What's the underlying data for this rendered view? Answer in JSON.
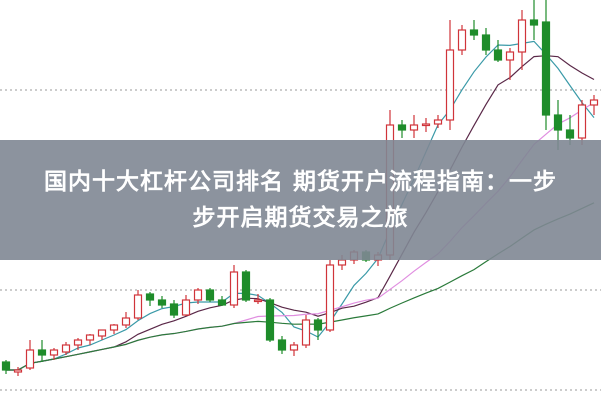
{
  "title": {
    "lines": [
      "国内十大杠杆公司排名 期货开户流程指南：一步",
      "步开启期货交易之旅"
    ]
  },
  "chart_data": {
    "type": "candlestick",
    "title": "",
    "xlabel": "",
    "ylabel": "",
    "grid": "dotted horizontal",
    "up_color": "#d0343a",
    "down_color": "#1e8c2a",
    "ma_colors": [
      "#3a9aa8",
      "#5a2848",
      "#e08ee0",
      "#2a7a3a"
    ],
    "ma_periods": [
      5,
      10,
      20,
      40
    ],
    "ohlc": [
      [
        38,
        40,
        26,
        30
      ],
      [
        28,
        33,
        24,
        30
      ],
      [
        32,
        60,
        30,
        50
      ],
      [
        50,
        60,
        38,
        45
      ],
      [
        45,
        52,
        40,
        50
      ],
      [
        48,
        58,
        45,
        55
      ],
      [
        55,
        62,
        50,
        60
      ],
      [
        60,
        66,
        55,
        65
      ],
      [
        64,
        70,
        60,
        70
      ],
      [
        70,
        76,
        66,
        75
      ],
      [
        75,
        88,
        72,
        82
      ],
      [
        82,
        110,
        80,
        105
      ],
      [
        106,
        108,
        94,
        100
      ],
      [
        100,
        104,
        92,
        95
      ],
      [
        96,
        100,
        82,
        85
      ],
      [
        85,
        105,
        84,
        100
      ],
      [
        100,
        112,
        96,
        110
      ],
      [
        110,
        112,
        98,
        100
      ],
      [
        100,
        104,
        94,
        95
      ],
      [
        95,
        135,
        92,
        128
      ],
      [
        128,
        130,
        98,
        100
      ],
      [
        100,
        106,
        96,
        100
      ],
      [
        100,
        102,
        58,
        60
      ],
      [
        60,
        64,
        46,
        50
      ],
      [
        50,
        58,
        44,
        55
      ],
      [
        55,
        85,
        52,
        80
      ],
      [
        80,
        82,
        60,
        70
      ],
      [
        70,
        140,
        68,
        135
      ],
      [
        135,
        145,
        130,
        140
      ],
      [
        140,
        150,
        136,
        148
      ],
      [
        148,
        150,
        138,
        140
      ],
      [
        140,
        148,
        134,
        145
      ],
      [
        145,
        290,
        140,
        275
      ],
      [
        275,
        280,
        262,
        270
      ],
      [
        270,
        285,
        262,
        275
      ],
      [
        275,
        282,
        268,
        276
      ],
      [
        276,
        285,
        272,
        280
      ],
      [
        280,
        380,
        270,
        350
      ],
      [
        350,
        375,
        345,
        370
      ],
      [
        370,
        380,
        360,
        365
      ],
      [
        365,
        372,
        345,
        350
      ],
      [
        350,
        360,
        338,
        340
      ],
      [
        340,
        352,
        320,
        348
      ],
      [
        348,
        390,
        330,
        380
      ],
      [
        380,
        400,
        360,
        375
      ],
      [
        378,
        400,
        270,
        285
      ],
      [
        285,
        300,
        250,
        270
      ],
      [
        270,
        285,
        255,
        262
      ],
      [
        262,
        300,
        255,
        295
      ],
      [
        295,
        305,
        285,
        300
      ]
    ]
  }
}
